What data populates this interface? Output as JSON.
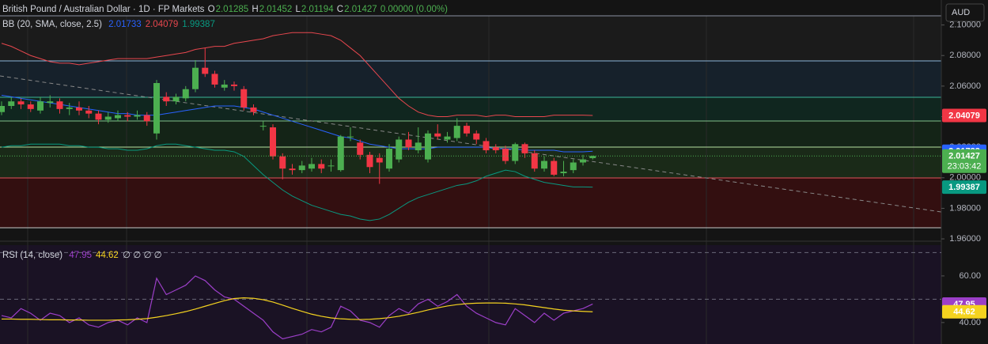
{
  "header": {
    "symbol": "British Pound / Australian Dollar · 1D · FP Markets",
    "o_label": "O",
    "open": "2.01285",
    "h_label": "H",
    "high": "2.01452",
    "l_label": "L",
    "low": "2.01194",
    "c_label": "C",
    "close": "2.01427",
    "change": "0.00000 (0.00%)",
    "currency": "AUD"
  },
  "chart_data": [
    {
      "type": "candlestick",
      "indicator": "BB (20, SMA, close, 2.5)",
      "up_color": "#4caf50",
      "down_color": "#f23645",
      "open": [
        2.043,
        2.047,
        2.05,
        2.048,
        2.044,
        2.049,
        2.05,
        2.045,
        2.046,
        2.044,
        2.042,
        2.038,
        2.039,
        2.041,
        2.04,
        2.041,
        2.029,
        2.053,
        2.05,
        2.052,
        2.058,
        2.072,
        2.068,
        2.059,
        2.061,
        2.058,
        2.046,
        2.034,
        2.033,
        2.014,
        2.006,
        2.005,
        2.006,
        2.009,
        2.008,
        2.005,
        2.027,
        2.023,
        2.015,
        2.013,
        2.006,
        2.012,
        2.025,
        2.018,
        2.012,
        2.029,
        2.025,
        2.026,
        2.034,
        2.029,
        2.024,
        2.02,
        2.019,
        2.011,
        2.022,
        2.016,
        2.006,
        2.011,
        2.003,
        2.005,
        2.01,
        2.01285
      ],
      "high": [
        2.05,
        2.053,
        2.052,
        2.05,
        2.053,
        2.054,
        2.052,
        2.049,
        2.05,
        2.047,
        2.044,
        2.043,
        2.044,
        2.043,
        2.044,
        2.043,
        2.064,
        2.056,
        2.055,
        2.06,
        2.077,
        2.085,
        2.07,
        2.064,
        2.063,
        2.06,
        2.048,
        2.037,
        2.035,
        2.016,
        2.009,
        2.011,
        2.013,
        2.012,
        2.012,
        2.028,
        2.033,
        2.025,
        2.017,
        2.016,
        2.022,
        2.027,
        2.03,
        2.033,
        2.031,
        2.035,
        2.03,
        2.039,
        2.036,
        2.031,
        2.026,
        2.022,
        2.021,
        2.023,
        2.023,
        2.018,
        2.014,
        2.013,
        2.011,
        2.012,
        2.015,
        2.01452
      ],
      "low": [
        2.041,
        2.045,
        2.045,
        2.043,
        2.042,
        2.046,
        2.042,
        2.041,
        2.041,
        2.039,
        2.035,
        2.036,
        2.037,
        2.037,
        2.038,
        2.034,
        2.025,
        2.047,
        2.048,
        2.05,
        2.056,
        2.066,
        2.059,
        2.057,
        2.057,
        2.044,
        2.041,
        2.031,
        2.012,
        1.999,
        2.002,
        2.003,
        2.004,
        2.003,
        2.004,
        2.004,
        2.024,
        2.012,
        2.003,
        1.996,
        2.004,
        2.01,
        2.018,
        2.016,
        2.01,
        2.025,
        2.023,
        2.024,
        2.027,
        2.022,
        2.016,
        2.016,
        2.009,
        2.009,
        2.013,
        2.004,
        2.004,
        2.001,
        2.001,
        2.003,
        2.008,
        2.01194
      ],
      "close": [
        2.047,
        2.05,
        2.048,
        2.045,
        2.05,
        2.05,
        2.045,
        2.046,
        2.044,
        2.042,
        2.038,
        2.04,
        2.041,
        2.04,
        2.041,
        2.037,
        2.062,
        2.05,
        2.053,
        2.058,
        2.072,
        2.068,
        2.061,
        2.061,
        2.06,
        2.046,
        2.043,
        2.034,
        2.014,
        2.006,
        2.005,
        2.008,
        2.009,
        2.006,
        2.008,
        2.027,
        2.027,
        2.015,
        2.007,
        2.01,
        2.019,
        2.025,
        2.02,
        2.023,
        2.029,
        2.027,
        2.027,
        2.034,
        2.029,
        2.025,
        2.018,
        2.018,
        2.011,
        2.022,
        2.016,
        2.006,
        2.011,
        2.002,
        2.004,
        2.01,
        2.012,
        2.01427
      ],
      "overlays": [
        {
          "color": "#e8474e",
          "values": [
            2.088,
            2.086,
            2.083,
            2.08,
            2.078,
            2.076,
            2.075,
            2.075,
            2.074,
            2.075,
            2.076,
            2.077,
            2.078,
            2.078,
            2.078,
            2.078,
            2.079,
            2.08,
            2.081,
            2.082,
            2.084,
            2.085,
            2.086,
            2.086,
            2.088,
            2.089,
            2.09,
            2.091,
            2.093,
            2.094,
            2.095,
            2.095,
            2.095,
            2.094,
            2.093,
            2.09,
            2.085,
            2.08,
            2.073,
            2.066,
            2.059,
            2.052,
            2.047,
            2.043,
            2.041,
            2.04,
            2.04,
            2.041,
            2.041,
            2.041,
            2.04,
            2.041,
            2.041,
            2.04,
            2.04,
            2.04,
            2.04,
            2.041,
            2.041,
            2.041,
            2.041,
            2.04079
          ]
        },
        {
          "color": "#2962ff",
          "values": [
            2.054,
            2.053,
            2.052,
            2.051,
            2.05,
            2.049,
            2.048,
            2.047,
            2.046,
            2.045,
            2.044,
            2.043,
            2.042,
            2.042,
            2.041,
            2.041,
            2.041,
            2.042,
            2.043,
            2.044,
            2.045,
            2.046,
            2.047,
            2.047,
            2.047,
            2.046,
            2.045,
            2.043,
            2.041,
            2.039,
            2.037,
            2.035,
            2.033,
            2.031,
            2.029,
            2.027,
            2.026,
            2.024,
            2.022,
            2.021,
            2.02,
            2.019,
            2.019,
            2.019,
            2.019,
            2.02,
            2.02,
            2.02,
            2.02,
            2.02,
            2.02,
            2.019,
            2.019,
            2.019,
            2.018,
            2.018,
            2.018,
            2.018,
            2.017,
            2.017,
            2.017,
            2.01733
          ]
        },
        {
          "color": "#089981",
          "values": [
            2.02,
            2.021,
            2.021,
            2.022,
            2.022,
            2.022,
            2.022,
            2.021,
            2.021,
            2.02,
            2.02,
            2.019,
            2.019,
            2.018,
            2.018,
            2.019,
            2.021,
            2.022,
            2.022,
            2.021,
            2.02,
            2.019,
            2.018,
            2.018,
            2.017,
            2.014,
            2.008,
            2.002,
            1.997,
            1.992,
            1.988,
            1.985,
            1.982,
            1.98,
            1.978,
            1.976,
            1.975,
            1.973,
            1.972,
            1.973,
            1.976,
            1.98,
            1.984,
            1.987,
            1.989,
            1.991,
            1.993,
            1.995,
            1.996,
            1.998,
            2.001,
            2.003,
            2.005,
            2.004,
            2.001,
            1.999,
            1.997,
            1.996,
            1.995,
            1.994,
            1.994,
            1.99387
          ]
        }
      ],
      "legend_labels": [
        {
          "value": 2.01733,
          "label": "2.01733",
          "color": "#2962ff"
        },
        {
          "value": 2.04079,
          "label": "2.04079",
          "color": "#e8474e"
        },
        {
          "value": 1.99387,
          "label": "1.99387",
          "color": "#089981"
        }
      ],
      "price_labels": [
        {
          "value": 2.04079,
          "label": "2.04079",
          "color": "#f23645"
        },
        {
          "value": 2.01733,
          "label": "2.01733",
          "color": "#2962ff"
        },
        {
          "value": 2.01427,
          "label": "2.01427",
          "color": "#4caf50"
        },
        {
          "value": 1.99387,
          "label": "1.99387",
          "color": "#089981"
        }
      ],
      "countdown": "23:03:42",
      "ylim": [
        1.959,
        2.106
      ],
      "yticks": [
        {
          "value": 1.96,
          "label": "1.96000"
        },
        {
          "value": 1.98,
          "label": "1.98000"
        },
        {
          "value": 2.0,
          "label": "2.00000"
        },
        {
          "value": 2.02,
          "label": "2.02000"
        },
        {
          "value": 2.04,
          "label": "2.04000"
        },
        {
          "value": 2.06,
          "label": "2.06000"
        },
        {
          "value": 2.08,
          "label": "2.08000"
        },
        {
          "value": 2.1,
          "label": "2.10000"
        }
      ]
    },
    {
      "type": "line",
      "indicator": "RSI (14, close)",
      "extra": "∅ ∅ ∅ ∅",
      "series": [
        {
          "color": "#9c3fc8",
          "values": [
            43,
            42,
            46,
            44,
            41,
            44,
            43,
            40,
            42,
            39,
            38,
            40,
            41,
            39,
            42,
            40,
            59,
            52,
            54,
            56,
            60,
            58,
            54,
            51,
            50,
            47,
            44,
            41,
            36,
            33,
            34,
            35,
            37,
            36,
            38,
            47,
            45,
            41,
            40,
            38,
            43,
            46,
            44,
            48,
            50,
            47,
            49,
            52,
            47,
            44,
            42,
            40,
            39,
            46,
            43,
            40,
            44,
            41,
            44,
            45,
            46,
            47.95
          ]
        },
        {
          "color": "#f5d31f",
          "values": [
            41.5,
            41.5,
            41.4,
            41.4,
            41.3,
            41.2,
            41.2,
            41.1,
            41.1,
            41.0,
            41.0,
            41.0,
            41.1,
            41.2,
            41.4,
            41.7,
            42.3,
            43.0,
            43.8,
            44.7,
            45.8,
            47.0,
            48.2,
            49.4,
            50.3,
            50.6,
            50.4,
            49.8,
            48.8,
            47.5,
            46.1,
            44.8,
            43.6,
            42.7,
            42.0,
            41.6,
            41.4,
            41.3,
            41.4,
            41.7,
            42.1,
            42.7,
            43.5,
            44.4,
            45.4,
            46.3,
            47.1,
            47.7,
            48.1,
            48.3,
            48.4,
            48.4,
            48.3,
            48.0,
            47.6,
            47.0,
            46.4,
            45.8,
            45.3,
            45.0,
            44.8,
            44.62
          ]
        }
      ],
      "legend_labels": [
        {
          "value": 47.95,
          "label": "47.95",
          "color": "#9c3fc8"
        },
        {
          "value": 44.62,
          "label": "44.62",
          "color": "#f5d31f"
        }
      ],
      "price_labels": [
        {
          "value": 47.95,
          "label": "47.95",
          "color": "#9c3fc8"
        },
        {
          "value": 44.62,
          "label": "44.62",
          "color": "#f5d31f"
        }
      ],
      "levels": [
        70,
        50
      ],
      "ylim": [
        30.8,
        73.2
      ],
      "yticks": [
        {
          "value": 60,
          "label": "60.00"
        },
        {
          "value": 40,
          "label": "40.00"
        }
      ]
    }
  ]
}
